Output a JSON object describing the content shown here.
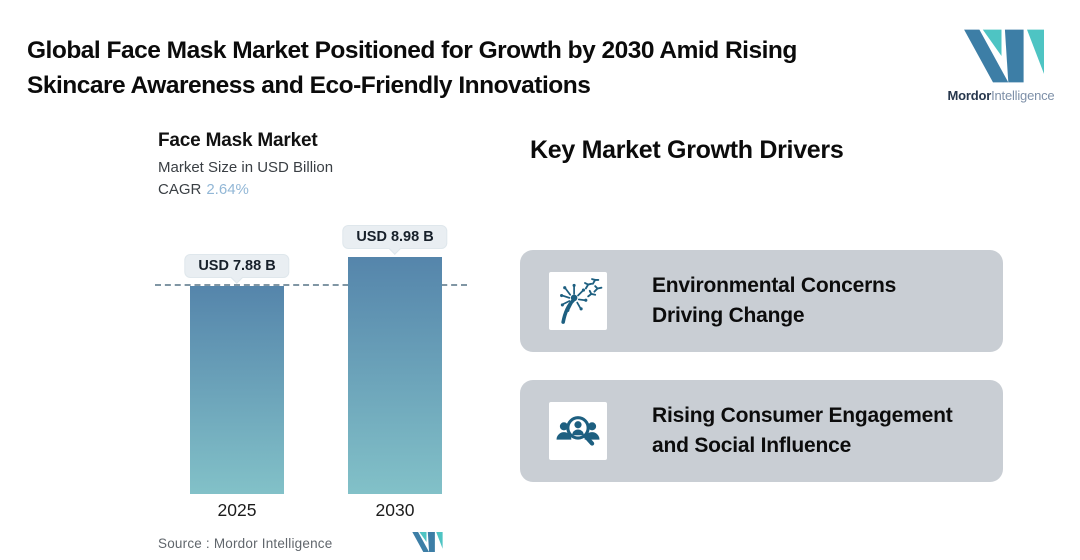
{
  "page": {
    "title_line1": "Global Face Mask Market Positioned for Growth by 2030 Amid Rising",
    "title_line2": "Skincare Awareness and Eco-Friendly Innovations"
  },
  "brand": {
    "name_bold": "Mordor",
    "name_light": "Intelligence"
  },
  "chart": {
    "title": "Face Mask Market",
    "subtitle": "Market Size in USD Billion",
    "cagr_label": "CAGR",
    "cagr_value": "2.64%",
    "source": "Source :  Mordor Intelligence"
  },
  "chart_data": {
    "type": "bar",
    "title": "Face Mask Market",
    "subtitle": "Market Size in USD Billion",
    "unit": "USD Billion",
    "categories": [
      "2025",
      "2030"
    ],
    "values": [
      7.88,
      8.98
    ],
    "value_labels": [
      "USD 7.88 B",
      "USD 8.98 B"
    ],
    "cagr_percent": 2.64,
    "reference_line": {
      "style": "dashed",
      "at_value": 7.88
    },
    "legend": false,
    "grid": false,
    "ylim": [
      0,
      10
    ]
  },
  "drivers": {
    "heading": "Key Market Growth Drivers",
    "cards": [
      {
        "icon": "dandelion-icon",
        "line1": "Environmental Concerns",
        "line2": "Driving Change"
      },
      {
        "icon": "consumer-engagement-icon",
        "line1": "Rising Consumer Engagement",
        "line2": "and Social Influence"
      }
    ]
  },
  "colors": {
    "logo_dark": "#3D7EA6",
    "logo_teal": "#4EC4C3",
    "bar_top": "#5585AB",
    "bar_bottom": "#82C1C8",
    "card_bg": "#C9CED4",
    "icon_color": "#1D5F80",
    "pill_bg": "#E9EEF2",
    "dash_color": "#8096A4",
    "cagr_blue": "#92B7D6"
  }
}
